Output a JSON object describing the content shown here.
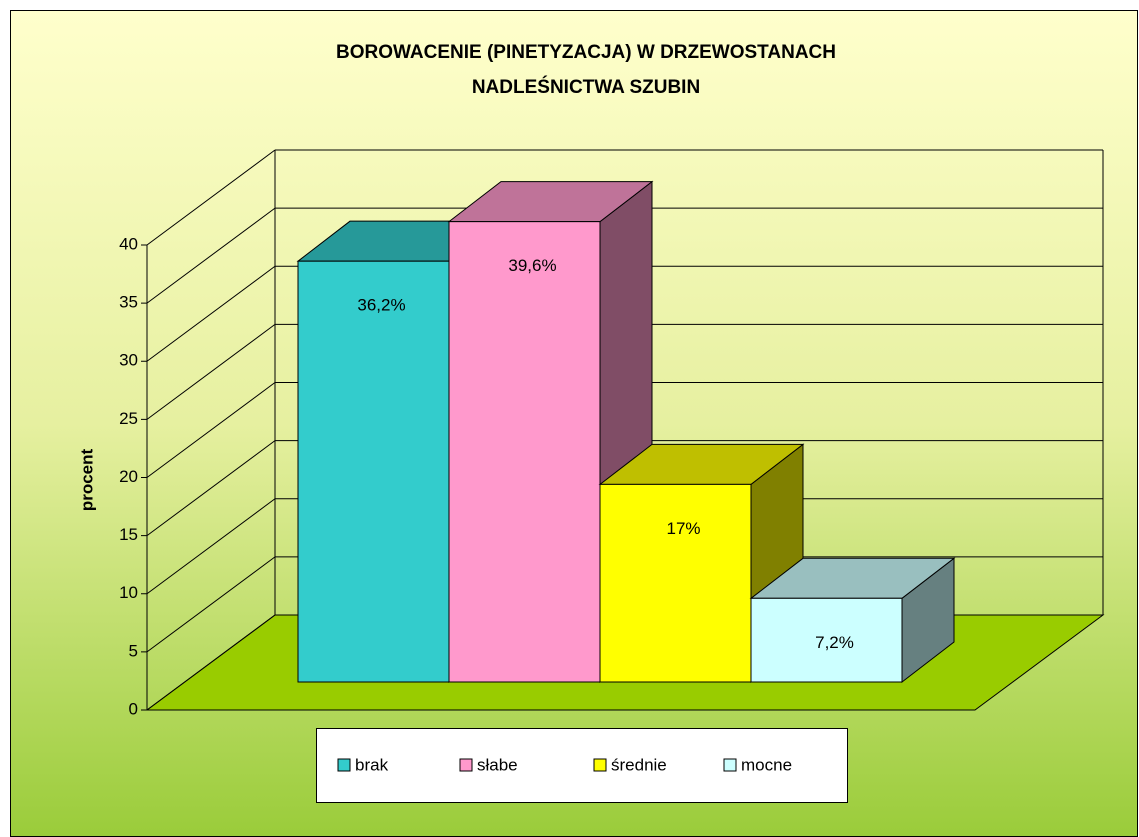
{
  "chart_data": {
    "type": "bar3d",
    "title": [
      "BOROWACENIE (PINETYZACJA) W DRZEWOSTANACH",
      "NADLEŚNICTWA SZUBIN"
    ],
    "y_label": "procent",
    "categories": [
      null
    ],
    "series": [
      {
        "name": "brak",
        "color": "#33CCCC",
        "values": [
          36.2
        ],
        "value_labels": [
          "36,2%"
        ]
      },
      {
        "name": "słabe",
        "color": "#FF99CC",
        "values": [
          39.6
        ],
        "value_labels": [
          "39,6%"
        ]
      },
      {
        "name": "średnie",
        "color": "#FFFF00",
        "values": [
          17
        ],
        "value_labels": [
          "17%"
        ]
      },
      {
        "name": "mocne",
        "color": "#CCFFFF",
        "values": [
          7.2
        ],
        "value_labels": [
          "7,2%"
        ]
      }
    ],
    "ylim": [
      0,
      40
    ],
    "yticks": [
      0,
      5,
      10,
      15,
      20,
      25,
      30,
      35,
      40
    ],
    "grid": true,
    "legend": "bottom",
    "floor_color": "#99CC00"
  }
}
